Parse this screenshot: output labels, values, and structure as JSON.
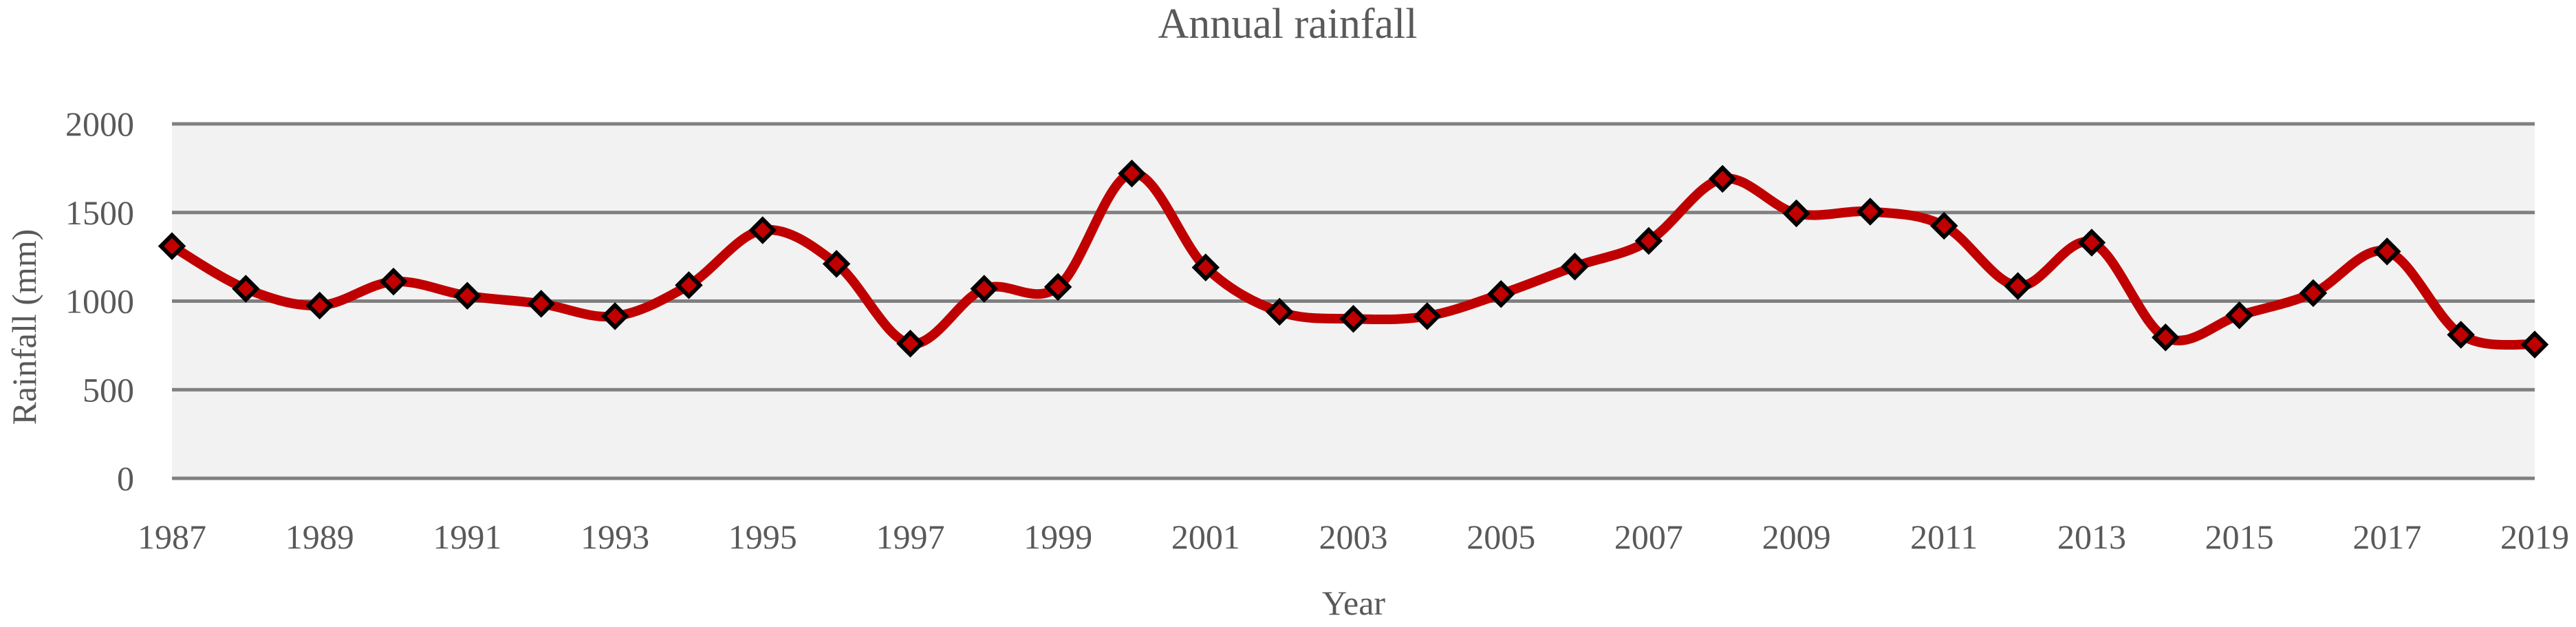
{
  "chart_data": {
    "type": "line",
    "title": "Annual rainfall",
    "xlabel": "Year",
    "ylabel": "Rainfall (mm)",
    "ylim": [
      0,
      2000
    ],
    "yticks": [
      0,
      500,
      1000,
      1500,
      2000
    ],
    "xlim": [
      1987,
      2019
    ],
    "xticks": [
      1987,
      1989,
      1991,
      1993,
      1995,
      1997,
      1999,
      2001,
      2003,
      2005,
      2007,
      2009,
      2011,
      2013,
      2015,
      2017,
      2019
    ],
    "grid": true,
    "legend": "none",
    "colors": {
      "line": "#c00000",
      "marker_fill": "#c00000",
      "marker_edge": "#000000",
      "plot_bg": "#f2f2f2",
      "grid": "#808080",
      "text": "#595959"
    },
    "series": [
      {
        "name": "Rainfall",
        "x": [
          1987,
          1988,
          1989,
          1990,
          1991,
          1992,
          1993,
          1994,
          1995,
          1996,
          1997,
          1998,
          1999,
          2000,
          2001,
          2002,
          2003,
          2004,
          2005,
          2006,
          2007,
          2008,
          2009,
          2010,
          2011,
          2012,
          2013,
          2014,
          2015,
          2016,
          2017,
          2018,
          2019
        ],
        "values": [
          1310,
          1070,
          975,
          1110,
          1030,
          985,
          915,
          1090,
          1400,
          1210,
          760,
          1070,
          1080,
          1720,
          1190,
          940,
          900,
          915,
          1040,
          1195,
          1340,
          1690,
          1495,
          1505,
          1425,
          1085,
          1330,
          795,
          920,
          1045,
          1280,
          810,
          755
        ]
      }
    ]
  }
}
